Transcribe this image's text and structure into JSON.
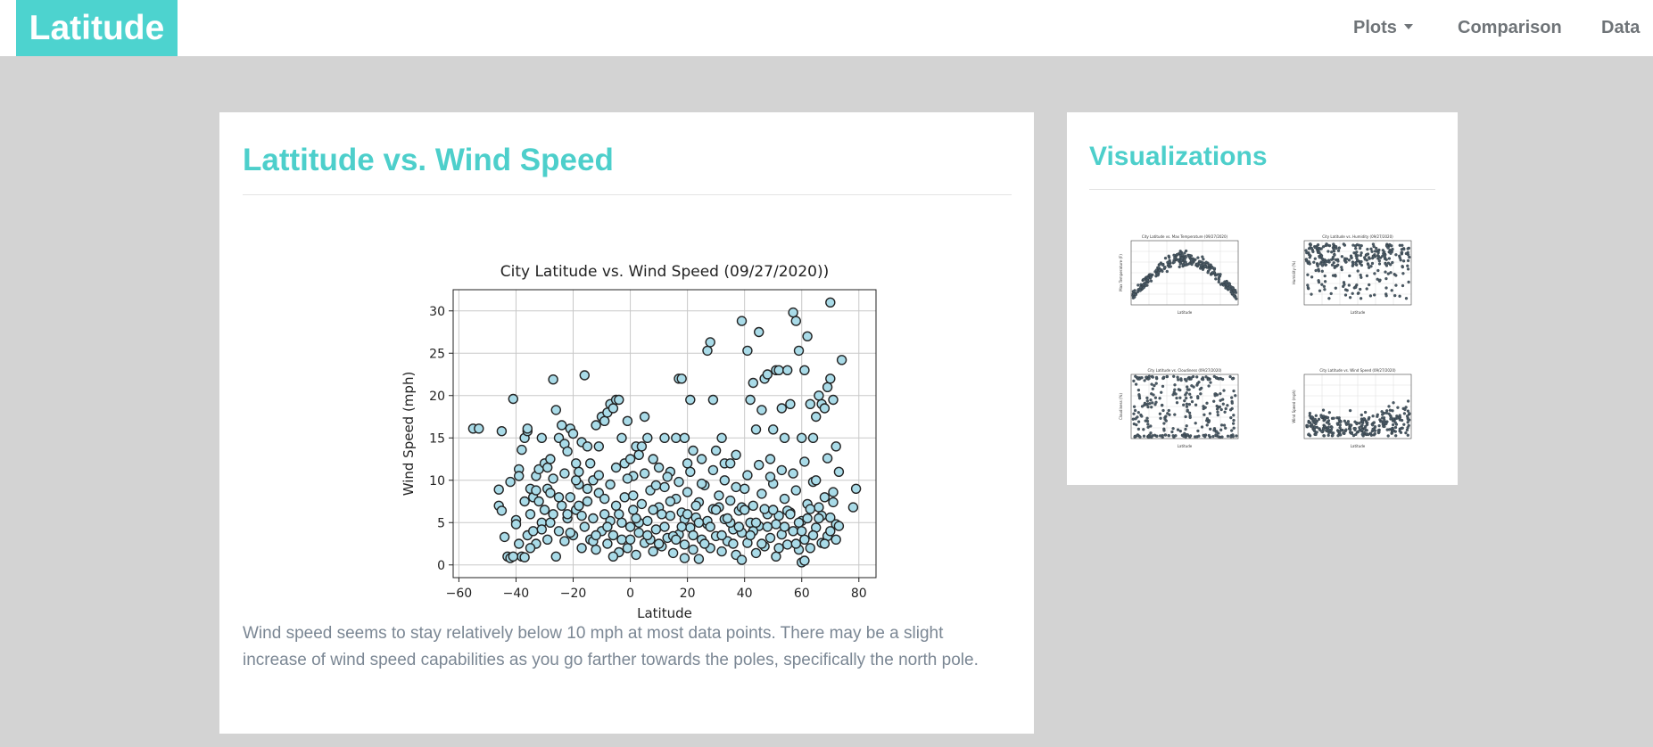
{
  "brand": "Latitude",
  "nav": {
    "plots": "Plots",
    "comparison": "Comparison",
    "data": "Data"
  },
  "colors": {
    "accent": "#4dd3cf",
    "background": "#d3d3d3",
    "point_fill": "#a9dbe8",
    "point_edge": "#222222",
    "text_muted": "#7b8794"
  },
  "main": {
    "heading": "Lattitude vs. Wind Speed",
    "description": "Wind speed seems to stay relatively below 10 mph at most data points. There may be a slight increase of wind speed capabilities as you go farther towards the poles, specifically the north pole."
  },
  "sidebar": {
    "heading": "Visualizations",
    "thumbnails": [
      {
        "kind": "max-temperature",
        "title": "City Latitude vs. Max Temperature (09/27/2020)",
        "xlabel": "Latitude",
        "ylabel": "Max Temperature (F)"
      },
      {
        "kind": "humidity",
        "title": "City Latitude vs. Humidity (09/27/2020)",
        "xlabel": "Latitude",
        "ylabel": "Humidity (%)"
      },
      {
        "kind": "cloudiness",
        "title": "City Latitude vs. Cloudiness (09/27/2020)",
        "xlabel": "Latitude",
        "ylabel": "Cloudiness (%)"
      },
      {
        "kind": "wind-speed",
        "title": "City Latitude vs. Wind Speed (09/27/2020)",
        "xlabel": "Latitude",
        "ylabel": "Wind Speed (mph)"
      }
    ]
  },
  "chart_data": {
    "type": "scatter",
    "title": "City Latitude vs. Wind Speed (09/27/2020))",
    "xlabel": "Latitude",
    "ylabel": "Wind Speed (mph)",
    "xlim": [
      -62,
      86
    ],
    "ylim": [
      -1.5,
      32.5
    ],
    "xticks": [
      -60,
      -40,
      -20,
      0,
      20,
      40,
      60,
      80
    ],
    "yticks": [
      0,
      5,
      10,
      15,
      20,
      25,
      30
    ],
    "xtick_labels": [
      "−60",
      "−40",
      "−20",
      "0",
      "20",
      "40",
      "60",
      "80"
    ],
    "ytick_labels": [
      "0",
      "5",
      "10",
      "15",
      "20",
      "25",
      "30"
    ],
    "grid": true,
    "point_color": "#a9dbe8",
    "edge_color": "#222222",
    "points": [
      [
        -55,
        16.1
      ],
      [
        -53,
        16.1
      ],
      [
        -45,
        15.8
      ],
      [
        -41,
        19.6
      ],
      [
        -42,
        9.8
      ],
      [
        -46,
        8.9
      ],
      [
        -46,
        7.0
      ],
      [
        -45,
        6.4
      ],
      [
        -44,
        3.3
      ],
      [
        -43,
        1.0
      ],
      [
        -42,
        0.8
      ],
      [
        -40,
        5.3
      ],
      [
        -39,
        11.3
      ],
      [
        -38,
        13.6
      ],
      [
        -37,
        15.0
      ],
      [
        -36,
        15.8
      ],
      [
        -36,
        16.1
      ],
      [
        -35,
        9.0
      ],
      [
        -34,
        8.0
      ],
      [
        -33,
        10.5
      ],
      [
        -32,
        11.3
      ],
      [
        -31,
        15.0
      ],
      [
        -30,
        12.0
      ],
      [
        -29,
        11.5
      ],
      [
        -28,
        12.5
      ],
      [
        -27,
        21.9
      ],
      [
        -26,
        18.3
      ],
      [
        -25,
        15.0
      ],
      [
        -24,
        16.5
      ],
      [
        -23,
        14.3
      ],
      [
        -22,
        13.4
      ],
      [
        -21,
        16.1
      ],
      [
        -20,
        15.5
      ],
      [
        -19,
        12.0
      ],
      [
        -18,
        11.0
      ],
      [
        -17,
        14.5
      ],
      [
        -16,
        22.4
      ],
      [
        -15,
        14.0
      ],
      [
        -14,
        12.0
      ],
      [
        -13,
        10.0
      ],
      [
        -12,
        16.5
      ],
      [
        -11,
        14.0
      ],
      [
        -10,
        17.5
      ],
      [
        -9,
        17.0
      ],
      [
        -8,
        18.0
      ],
      [
        -7,
        19.0
      ],
      [
        -6,
        18.5
      ],
      [
        -5,
        19.5
      ],
      [
        -4,
        19.5
      ],
      [
        -3,
        15.0
      ],
      [
        -2,
        12.0
      ],
      [
        -1,
        17.0
      ],
      [
        0,
        12.5
      ],
      [
        1,
        10.5
      ],
      [
        2,
        14.0
      ],
      [
        3,
        13.0
      ],
      [
        4,
        14.0
      ],
      [
        5,
        17.5
      ],
      [
        6,
        15.0
      ],
      [
        8,
        12.5
      ],
      [
        10,
        11.5
      ],
      [
        12,
        15.0
      ],
      [
        14,
        11.0
      ],
      [
        16,
        15.0
      ],
      [
        17,
        22.0
      ],
      [
        18,
        22.0
      ],
      [
        19,
        15.0
      ],
      [
        20,
        12.0
      ],
      [
        21,
        19.5
      ],
      [
        22,
        13.5
      ],
      [
        25,
        12.5
      ],
      [
        27,
        25.3
      ],
      [
        28,
        26.3
      ],
      [
        29,
        19.5
      ],
      [
        30,
        13.5
      ],
      [
        32,
        15.0
      ],
      [
        33,
        12.0
      ],
      [
        35,
        12.0
      ],
      [
        37,
        13.0
      ],
      [
        39,
        28.8
      ],
      [
        41,
        25.3
      ],
      [
        42,
        19.5
      ],
      [
        43,
        21.5
      ],
      [
        44,
        16.0
      ],
      [
        45,
        27.5
      ],
      [
        46,
        18.3
      ],
      [
        47,
        22.0
      ],
      [
        48,
        22.5
      ],
      [
        49,
        12.5
      ],
      [
        50,
        16.0
      ],
      [
        51,
        23.0
      ],
      [
        52,
        23.0
      ],
      [
        53,
        18.5
      ],
      [
        54,
        15.0
      ],
      [
        55,
        23.0
      ],
      [
        56,
        19.0
      ],
      [
        57,
        29.8
      ],
      [
        58,
        28.8
      ],
      [
        59,
        25.3
      ],
      [
        60,
        15.0
      ],
      [
        61,
        23.0
      ],
      [
        62,
        27.0
      ],
      [
        63,
        19.0
      ],
      [
        64,
        15.0
      ],
      [
        65,
        17.5
      ],
      [
        66,
        20.0
      ],
      [
        67,
        19.0
      ],
      [
        68,
        18.5
      ],
      [
        69,
        21.0
      ],
      [
        70,
        31.0
      ],
      [
        70,
        22.0
      ],
      [
        71,
        19.5
      ],
      [
        72,
        14.0
      ],
      [
        73,
        11.0
      ],
      [
        74,
        24.2
      ],
      [
        78,
        6.8
      ],
      [
        79,
        9.0
      ],
      [
        -40,
        4.8
      ],
      [
        -39,
        2.5
      ],
      [
        -38,
        1.0
      ],
      [
        -37,
        0.9
      ],
      [
        -36,
        3.5
      ],
      [
        -35,
        6.0
      ],
      [
        -34,
        4.0
      ],
      [
        -33,
        2.5
      ],
      [
        -32,
        7.5
      ],
      [
        -31,
        5.0
      ],
      [
        -30,
        6.5
      ],
      [
        -29,
        9.0
      ],
      [
        -28,
        8.5
      ],
      [
        -27,
        6.0
      ],
      [
        -26,
        1.0
      ],
      [
        -25,
        4.0
      ],
      [
        -24,
        7.0
      ],
      [
        -23,
        2.8
      ],
      [
        -22,
        5.5
      ],
      [
        -21,
        8.0
      ],
      [
        -20,
        3.5
      ],
      [
        -19,
        6.5
      ],
      [
        -18,
        9.5
      ],
      [
        -17,
        2.0
      ],
      [
        -16,
        4.5
      ],
      [
        -15,
        7.5
      ],
      [
        -14,
        3.0
      ],
      [
        -13,
        5.5
      ],
      [
        -12,
        1.8
      ],
      [
        -11,
        8.5
      ],
      [
        -10,
        4.0
      ],
      [
        -9,
        6.0
      ],
      [
        -8,
        2.5
      ],
      [
        -7,
        9.5
      ],
      [
        -6,
        3.5
      ],
      [
        -5,
        7.0
      ],
      [
        -4,
        1.5
      ],
      [
        -3,
        5.0
      ],
      [
        -2,
        8.0
      ],
      [
        -1,
        2.0
      ],
      [
        0,
        4.5
      ],
      [
        1,
        6.5
      ],
      [
        2,
        1.2
      ],
      [
        3,
        3.8
      ],
      [
        4,
        7.2
      ],
      [
        5,
        2.6
      ],
      [
        6,
        5.2
      ],
      [
        7,
        8.8
      ],
      [
        8,
        1.6
      ],
      [
        9,
        4.2
      ],
      [
        10,
        6.8
      ],
      [
        11,
        2.2
      ],
      [
        12,
        9.2
      ],
      [
        13,
        3.2
      ],
      [
        14,
        5.8
      ],
      [
        15,
        1.4
      ],
      [
        16,
        7.8
      ],
      [
        17,
        3.6
      ],
      [
        18,
        6.2
      ],
      [
        19,
        2.4
      ],
      [
        20,
        8.6
      ],
      [
        21,
        4.4
      ],
      [
        22,
        1.8
      ],
      [
        23,
        5.6
      ],
      [
        24,
        7.4
      ],
      [
        25,
        3.0
      ],
      [
        26,
        9.4
      ],
      [
        27,
        4.8
      ],
      [
        28,
        2.0
      ],
      [
        29,
        6.6
      ],
      [
        30,
        3.4
      ],
      [
        31,
        8.2
      ],
      [
        32,
        1.6
      ],
      [
        33,
        5.4
      ],
      [
        34,
        2.8
      ],
      [
        35,
        7.6
      ],
      [
        36,
        4.2
      ],
      [
        37,
        1.2
      ],
      [
        38,
        6.4
      ],
      [
        39,
        3.8
      ],
      [
        40,
        9.0
      ],
      [
        41,
        2.6
      ],
      [
        42,
        5.0
      ],
      [
        43,
        7.0
      ],
      [
        44,
        1.4
      ],
      [
        45,
        4.6
      ],
      [
        46,
        8.4
      ],
      [
        47,
        2.2
      ],
      [
        48,
        6.0
      ],
      [
        49,
        3.2
      ],
      [
        50,
        9.6
      ],
      [
        51,
        1.0
      ],
      [
        52,
        5.8
      ],
      [
        53,
        3.6
      ],
      [
        54,
        7.8
      ],
      [
        55,
        2.4
      ],
      [
        56,
        6.2
      ],
      [
        57,
        4.0
      ],
      [
        58,
        8.8
      ],
      [
        59,
        1.8
      ],
      [
        60,
        5.2
      ],
      [
        61,
        3.0
      ],
      [
        62,
        7.2
      ],
      [
        63,
        2.0
      ],
      [
        64,
        9.8
      ],
      [
        65,
        4.4
      ],
      [
        66,
        6.8
      ],
      [
        67,
        2.6
      ],
      [
        68,
        8.0
      ],
      [
        69,
        3.4
      ],
      [
        70,
        5.6
      ],
      [
        71,
        7.4
      ],
      [
        72,
        4.8
      ],
      [
        -41,
        1.0
      ],
      [
        -39,
        10.5
      ],
      [
        -37,
        7.5
      ],
      [
        -35,
        2.0
      ],
      [
        -33,
        8.8
      ],
      [
        -31,
        4.2
      ],
      [
        -29,
        3.0
      ],
      [
        -27,
        10.2
      ],
      [
        -25,
        8.0
      ],
      [
        -23,
        10.8
      ],
      [
        -21,
        3.8
      ],
      [
        -19,
        10.0
      ],
      [
        -17,
        5.8
      ],
      [
        -15,
        9.0
      ],
      [
        -13,
        2.8
      ],
      [
        -11,
        10.6
      ],
      [
        -9,
        7.8
      ],
      [
        -7,
        5.2
      ],
      [
        -5,
        11.5
      ],
      [
        -3,
        3.0
      ],
      [
        -1,
        10.2
      ],
      [
        1,
        8.2
      ],
      [
        3,
        5.0
      ],
      [
        5,
        10.8
      ],
      [
        7,
        3.0
      ],
      [
        9,
        9.4
      ],
      [
        11,
        6.0
      ],
      [
        13,
        10.4
      ],
      [
        15,
        3.4
      ],
      [
        17,
        9.8
      ],
      [
        19,
        5.4
      ],
      [
        21,
        11.0
      ],
      [
        23,
        7.0
      ],
      [
        25,
        9.6
      ],
      [
        27,
        5.2
      ],
      [
        29,
        11.2
      ],
      [
        31,
        6.8
      ],
      [
        33,
        10.0
      ],
      [
        35,
        5.0
      ],
      [
        37,
        9.2
      ],
      [
        39,
        6.8
      ],
      [
        41,
        10.6
      ],
      [
        43,
        4.0
      ],
      [
        45,
        11.8
      ],
      [
        47,
        6.6
      ],
      [
        49,
        10.4
      ],
      [
        51,
        4.8
      ],
      [
        53,
        11.2
      ],
      [
        55,
        6.4
      ],
      [
        57,
        10.8
      ],
      [
        59,
        5.0
      ],
      [
        61,
        12.2
      ],
      [
        63,
        6.6
      ],
      [
        65,
        10.0
      ],
      [
        67,
        5.8
      ],
      [
        69,
        12.6
      ],
      [
        71,
        8.6
      ],
      [
        73,
        4.6
      ],
      [
        -28,
        5.0
      ],
      [
        -22,
        6.0
      ],
      [
        -18,
        7.0
      ],
      [
        -12,
        3.5
      ],
      [
        -8,
        4.5
      ],
      [
        -4,
        6.0
      ],
      [
        0,
        3.0
      ],
      [
        2,
        5.5
      ],
      [
        6,
        3.5
      ],
      [
        8,
        6.5
      ],
      [
        10,
        2.5
      ],
      [
        12,
        4.5
      ],
      [
        14,
        7.5
      ],
      [
        16,
        3.0
      ],
      [
        18,
        4.5
      ],
      [
        20,
        6.0
      ],
      [
        22,
        3.5
      ],
      [
        24,
        5.0
      ],
      [
        26,
        2.5
      ],
      [
        28,
        4.5
      ],
      [
        30,
        6.5
      ],
      [
        32,
        3.5
      ],
      [
        34,
        5.5
      ],
      [
        36,
        2.5
      ],
      [
        38,
        4.5
      ],
      [
        40,
        6.5
      ],
      [
        42,
        3.5
      ],
      [
        44,
        5.0
      ],
      [
        46,
        2.5
      ],
      [
        48,
        4.5
      ],
      [
        50,
        6.5
      ],
      [
        52,
        2.0
      ],
      [
        54,
        4.5
      ],
      [
        56,
        6.0
      ],
      [
        58,
        2.5
      ],
      [
        60,
        4.0
      ],
      [
        62,
        5.5
      ],
      [
        64,
        3.5
      ],
      [
        66,
        5.5
      ],
      [
        68,
        2.5
      ],
      [
        70,
        4.0
      ],
      [
        72,
        3.0
      ],
      [
        60,
        0.3
      ],
      [
        61,
        0.5
      ],
      [
        19,
        0.8
      ],
      [
        39,
        0.6
      ],
      [
        -6,
        1.0
      ],
      [
        24,
        0.7
      ]
    ]
  }
}
